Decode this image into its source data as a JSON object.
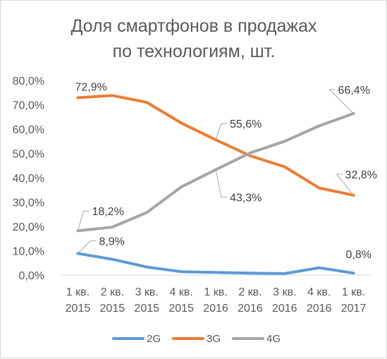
{
  "chart_data": {
    "type": "line",
    "title_lines": [
      "Доля смартфонов в продажах",
      "по технологиям, шт."
    ],
    "categories": [
      [
        "1 кв.",
        "2015"
      ],
      [
        "2 кв.",
        "2015"
      ],
      [
        "3 кв.",
        "2015"
      ],
      [
        "4 кв.",
        "2015"
      ],
      [
        "1 кв.",
        "2016"
      ],
      [
        "2 кв.",
        "2016"
      ],
      [
        "3 кв.",
        "2016"
      ],
      [
        "4 кв.",
        "2016"
      ],
      [
        "1 кв.",
        "2017"
      ]
    ],
    "y_ticks": [
      "0,0%",
      "10,0%",
      "20,0%",
      "30,0%",
      "40,0%",
      "50,0%",
      "60,0%",
      "70,0%",
      "80,0%"
    ],
    "ylim": [
      0,
      80
    ],
    "grid": false,
    "legend_position": "bottom",
    "series": [
      {
        "name": "2G",
        "color": "#5b9bd5",
        "values": [
          8.9,
          6.5,
          3.3,
          1.4,
          1.1,
          0.8,
          0.6,
          3.0,
          0.8
        ],
        "labels": [
          {
            "index": 0,
            "text": "8,9%"
          },
          {
            "index": 8,
            "text": "0,8%"
          }
        ]
      },
      {
        "name": "3G",
        "color": "#ed7d31",
        "values": [
          72.9,
          73.8,
          71.0,
          62.5,
          55.6,
          49.0,
          44.5,
          35.8,
          32.8
        ],
        "labels": [
          {
            "index": 0,
            "text": "72,9%"
          },
          {
            "index": 4,
            "text": "55,6%"
          },
          {
            "index": 8,
            "text": "32,8%"
          }
        ]
      },
      {
        "name": "4G",
        "color": "#a5a5a5",
        "values": [
          18.2,
          19.7,
          25.7,
          36.2,
          43.3,
          50.2,
          55.0,
          61.3,
          66.4
        ],
        "labels": [
          {
            "index": 0,
            "text": "18,2%"
          },
          {
            "index": 4,
            "text": "43,3%"
          },
          {
            "index": 8,
            "text": "66,4%"
          }
        ]
      }
    ]
  }
}
